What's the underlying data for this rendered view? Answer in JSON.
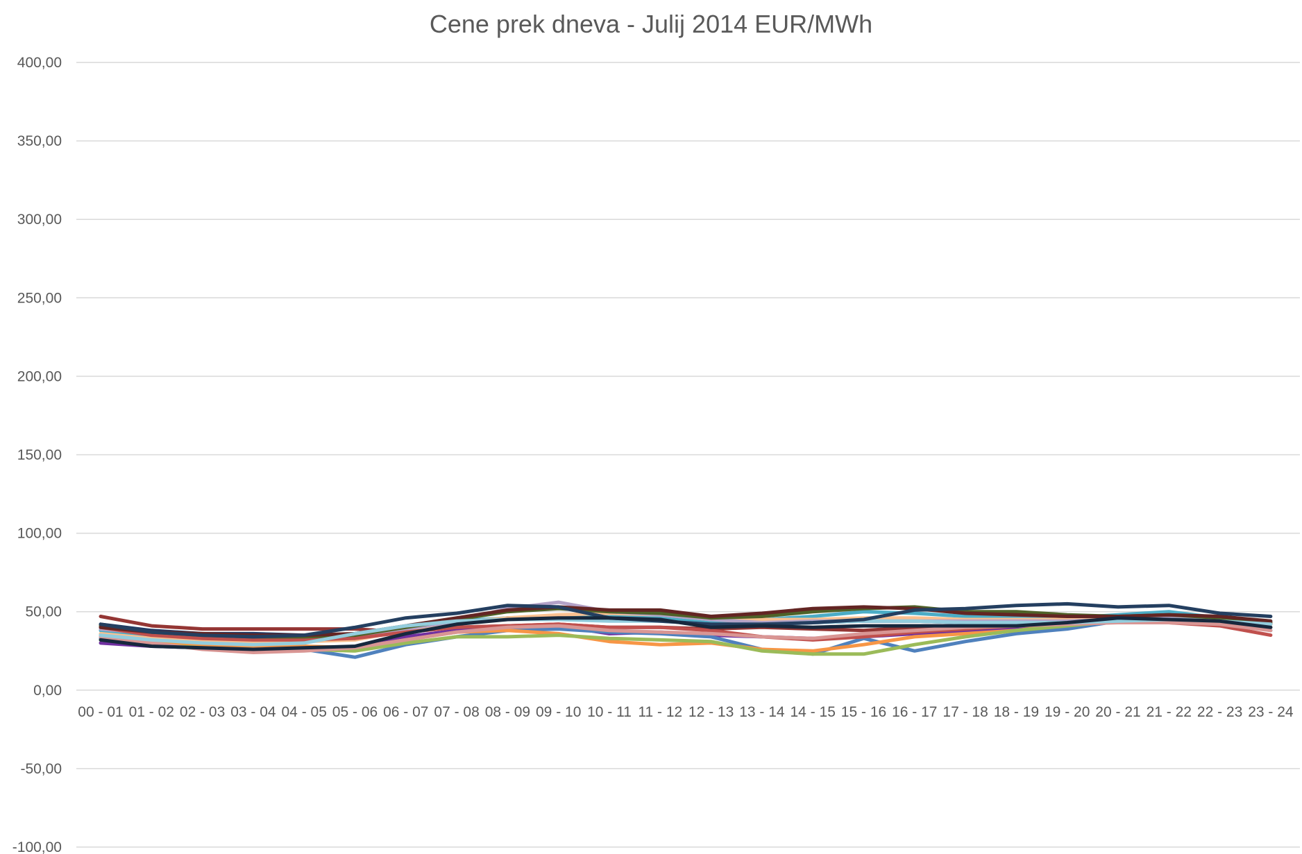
{
  "chart_data": {
    "type": "line",
    "title": "Cene prek dneva - Julij 2014 EUR/MWh",
    "xlabel": "",
    "ylabel": "",
    "ylim": [
      -100,
      400
    ],
    "y_ticks": [
      "400,00",
      "350,00",
      "300,00",
      "250,00",
      "200,00",
      "150,00",
      "100,00",
      "50,00",
      "0,00",
      "-50,00",
      "-100,00"
    ],
    "y_tick_values": [
      400,
      350,
      300,
      250,
      200,
      150,
      100,
      50,
      0,
      -50,
      -100
    ],
    "grid": true,
    "legend": "none",
    "categories": [
      "00 - 01",
      "01 - 02",
      "02 - 03",
      "03 - 04",
      "04 - 05",
      "05 - 06",
      "06 - 07",
      "07 - 08",
      "08 - 09",
      "09 - 10",
      "10 - 11",
      "11 - 12",
      "12 - 13",
      "13 - 14",
      "14 - 15",
      "15 - 16",
      "16 - 17",
      "17 - 18",
      "18 - 19",
      "19 - 20",
      "20 - 21",
      "21 - 22",
      "22 - 23",
      "23 - 24"
    ],
    "series": [
      {
        "color": "#943634",
        "values": [
          47,
          41,
          39,
          39,
          39,
          39,
          37,
          40,
          41,
          42,
          40,
          40,
          39,
          40,
          39,
          38,
          40,
          41,
          41,
          43,
          45,
          45,
          44,
          43
        ]
      },
      {
        "color": "#1f3864",
        "values": [
          42,
          38,
          36,
          36,
          35,
          34,
          38,
          42,
          46,
          47,
          46,
          46,
          44,
          42,
          43,
          44,
          44,
          43,
          43,
          43,
          45,
          45,
          44,
          42
        ]
      },
      {
        "color": "#7030a0",
        "values": [
          30,
          28,
          27,
          26,
          26,
          27,
          34,
          38,
          40,
          41,
          36,
          37,
          35,
          34,
          33,
          34,
          36,
          38,
          40,
          42,
          44,
          44,
          43,
          40
        ]
      },
      {
        "color": "#4f81bd",
        "values": [
          33,
          29,
          27,
          26,
          26,
          21,
          29,
          34,
          38,
          39,
          37,
          36,
          34,
          26,
          23,
          33,
          25,
          31,
          36,
          39,
          44,
          46,
          44,
          38
        ]
      },
      {
        "color": "#f79646",
        "values": [
          35,
          31,
          29,
          28,
          28,
          27,
          32,
          37,
          38,
          36,
          31,
          29,
          30,
          26,
          25,
          29,
          34,
          36,
          38,
          42,
          45,
          49,
          45,
          42
        ]
      },
      {
        "color": "#9bbb59",
        "values": [
          32,
          29,
          27,
          26,
          26,
          25,
          30,
          34,
          34,
          35,
          33,
          32,
          31,
          25,
          23,
          23,
          29,
          34,
          38,
          41,
          44,
          44,
          43,
          40
        ]
      },
      {
        "color": "#4bacc6",
        "values": [
          38,
          34,
          32,
          31,
          32,
          35,
          40,
          44,
          46,
          47,
          47,
          46,
          44,
          45,
          47,
          50,
          49,
          47,
          46,
          46,
          48,
          50,
          46,
          44
        ]
      },
      {
        "color": "#fac090",
        "values": [
          36,
          33,
          32,
          31,
          31,
          32,
          38,
          43,
          46,
          48,
          49,
          48,
          45,
          45,
          45,
          46,
          46,
          45,
          45,
          45,
          46,
          47,
          45,
          43
        ]
      },
      {
        "color": "#b3a2c7",
        "values": [
          39,
          36,
          34,
          33,
          33,
          34,
          39,
          44,
          52,
          56,
          50,
          48,
          45,
          43,
          44,
          44,
          44,
          44,
          44,
          44,
          45,
          46,
          45,
          43
        ]
      },
      {
        "color": "#c0504d",
        "values": [
          40,
          35,
          33,
          32,
          32,
          33,
          37,
          40,
          41,
          42,
          40,
          40,
          38,
          34,
          32,
          34,
          37,
          39,
          41,
          43,
          43,
          43,
          41,
          35
        ]
      },
      {
        "color": "#4f6228",
        "values": [
          41,
          37,
          35,
          34,
          34,
          35,
          40,
          45,
          50,
          52,
          50,
          49,
          46,
          47,
          50,
          52,
          53,
          50,
          50,
          48,
          47,
          48,
          46,
          43
        ]
      },
      {
        "color": "#632523",
        "values": [
          40,
          37,
          36,
          35,
          35,
          36,
          41,
          46,
          51,
          53,
          51,
          51,
          47,
          49,
          52,
          53,
          52,
          49,
          48,
          47,
          47,
          48,
          47,
          44
        ]
      },
      {
        "color": "#d99694",
        "values": [
          34,
          30,
          26,
          24,
          25,
          27,
          32,
          37,
          40,
          41,
          38,
          37,
          36,
          34,
          33,
          36,
          38,
          40,
          41,
          42,
          43,
          43,
          42,
          38
        ]
      },
      {
        "color": "#93cddd",
        "values": [
          35,
          32,
          30,
          29,
          30,
          36,
          41,
          44,
          45,
          45,
          44,
          44,
          42,
          42,
          43,
          44,
          44,
          43,
          43,
          43,
          44,
          45,
          44,
          42
        ]
      },
      {
        "color": "#243f60",
        "values": [
          42,
          37,
          35,
          34,
          35,
          40,
          46,
          49,
          54,
          53,
          46,
          44,
          42,
          42,
          43,
          45,
          51,
          52,
          54,
          55,
          53,
          54,
          49,
          47
        ]
      },
      {
        "color": "#17283d",
        "values": [
          32,
          28,
          27,
          26,
          27,
          28,
          36,
          42,
          45,
          46,
          46,
          45,
          40,
          41,
          40,
          41,
          41,
          41,
          41,
          43,
          46,
          45,
          44,
          40
        ]
      }
    ]
  }
}
